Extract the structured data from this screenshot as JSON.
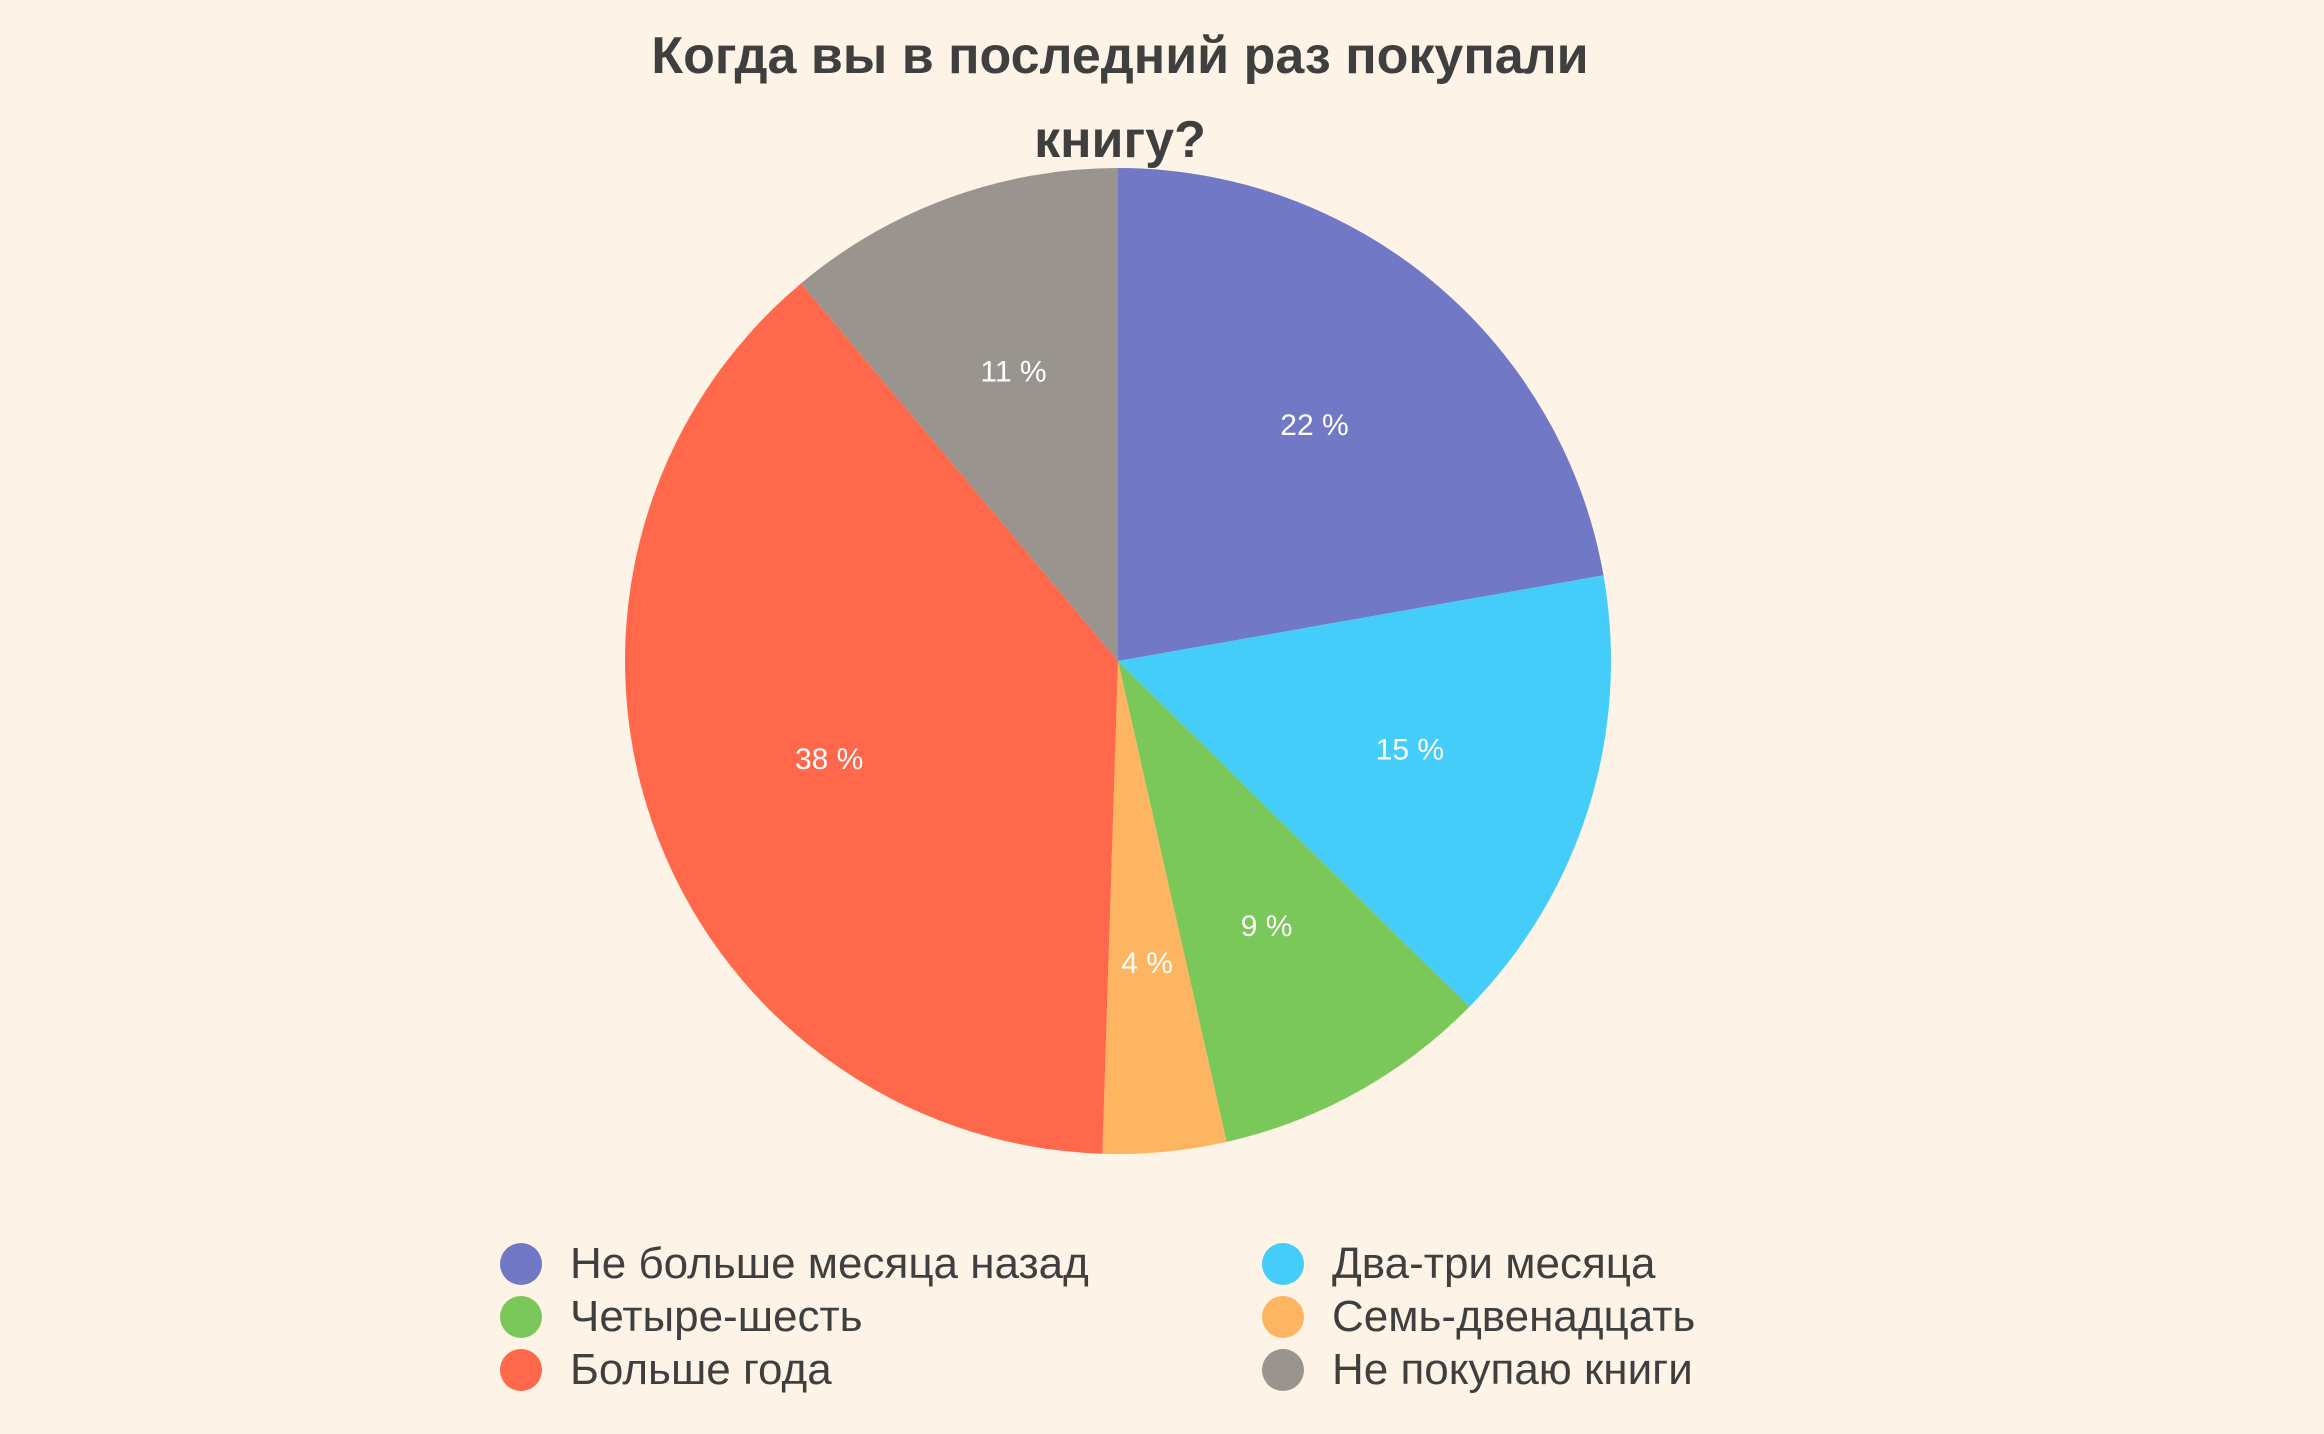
{
  "chart_data": {
    "type": "pie",
    "title": "Когда вы в последний раз покупали книгу?",
    "title_lines": [
      "Когда вы в последний раз покупали",
      "книгу?"
    ],
    "unit": "%",
    "categories": [
      "Не больше месяца назад",
      "Два-три месяца",
      "Четыре-шесть",
      "Семь-двенадцать",
      "Больше года",
      "Не покупаю книги"
    ],
    "values": [
      22,
      15,
      9,
      4,
      38,
      11
    ],
    "slice_labels": [
      "22 %",
      "15 %",
      "9 %",
      "4 %",
      "38 %",
      "11 %"
    ],
    "colors": [
      "#7178c6",
      "#44cdf9",
      "#7ac75a",
      "#feb562",
      "#ff684b",
      "#99948d"
    ],
    "start": "top",
    "direction": "clockwise",
    "legend": {
      "placement": "bottom",
      "items": [
        {
          "label": "Не больше месяца назад",
          "color": "#7178c6"
        },
        {
          "label": "Два-три месяца",
          "color": "#44cdf9"
        },
        {
          "label": "Четыре-шесть",
          "color": "#7ac75a"
        },
        {
          "label": "Семь-двенадцать",
          "color": "#feb562"
        },
        {
          "label": "Больше года",
          "color": "#ff684b"
        },
        {
          "label": "Не покупаю книги",
          "color": "#99948d"
        }
      ]
    }
  }
}
